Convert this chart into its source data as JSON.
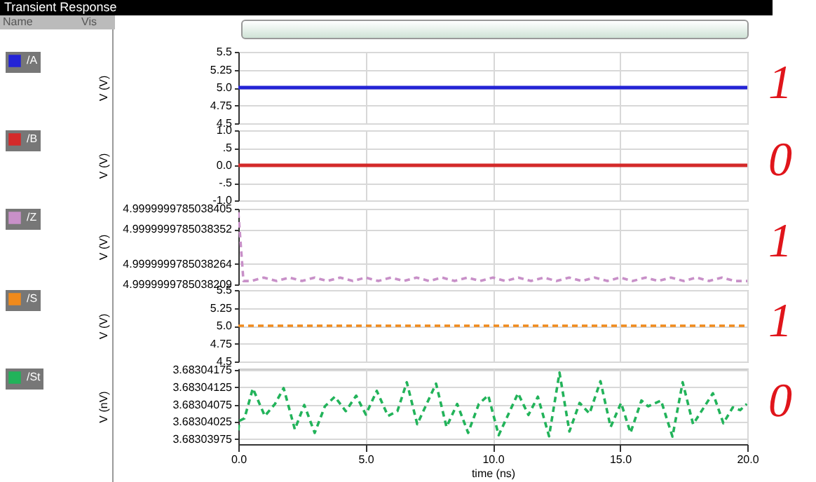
{
  "chart_data": [
    {
      "type": "line",
      "ylabel": "V (V)",
      "annotations": [
        "1",
        "Name",
        "Vis",
        "Transient Response"
      ],
      "series": [
        {
          "name": "/A",
          "color": "#2323d6",
          "x": [
            0,
            20
          ],
          "values": [
            5,
            5
          ]
        }
      ],
      "xlim": [
        0,
        20
      ],
      "xticks": [
        {
          "value": 0,
          "label": null
        },
        {
          "value": 5,
          "label": null
        },
        {
          "value": 10,
          "label": null
        },
        {
          "value": 15,
          "label": null
        },
        {
          "value": 20,
          "label": null
        }
      ],
      "ylim": [
        4.5,
        5.5
      ],
      "yticks": [
        5.5,
        5.25,
        {
          "value": 5,
          "label": "5.0"
        },
        4.75,
        4.5
      ],
      "grid": true,
      "legend": "left",
      "tick_labels": "y",
      "line_style": "solid"
    },
    {
      "type": "line",
      "ylabel": "V (V)",
      "annotations": [
        "0"
      ],
      "series": [
        {
          "name": "/B",
          "color": "#d42a2a",
          "x": [
            0,
            20
          ],
          "values": [
            0,
            0
          ]
        }
      ],
      "xlim": [
        0,
        20
      ],
      "xticks": [
        {
          "value": 0,
          "label": null
        },
        {
          "value": 5,
          "label": null
        },
        {
          "value": 10,
          "label": null
        },
        {
          "value": 15,
          "label": null
        },
        {
          "value": 20,
          "label": null
        }
      ],
      "ylim": [
        -1,
        1
      ],
      "yticks": [
        {
          "value": 1,
          "label": "1.0"
        },
        {
          "value": 0.5,
          "label": ".5"
        },
        {
          "value": 0,
          "label": "0.0"
        },
        {
          "value": -0.5,
          "label": "-.5"
        },
        {
          "value": -1,
          "label": "-1.0"
        }
      ],
      "grid": true,
      "legend": "left",
      "tick_labels": "y",
      "line_style": "solid"
    },
    {
      "type": "line",
      "ylabel": "V (V)",
      "annotations": [
        "1"
      ],
      "series": [
        {
          "name": "/Z",
          "color": "#c890c8",
          "x": [
            0,
            0.2,
            0.5,
            1,
            1.5,
            2,
            2.5,
            3,
            3.5,
            4,
            4.5,
            5,
            5.5,
            6,
            6.5,
            7,
            7.5,
            8,
            8.5,
            9,
            9.5,
            10,
            10.5,
            11,
            11.5,
            12,
            12.5,
            13,
            13.5,
            14,
            14.5,
            15,
            15.5,
            16,
            16.5,
            17,
            17.5,
            18,
            18.5,
            19,
            19.5,
            20
          ],
          "values": [
            4.99999997850384,
            4.999999978503822,
            4.999999978503822,
            4.999999978503823,
            4.999999978503822,
            4.999999978503823,
            4.999999978503822,
            4.999999978503823,
            4.999999978503822,
            4.999999978503823,
            4.999999978503822,
            4.999999978503823,
            4.999999978503822,
            4.999999978503823,
            4.999999978503822,
            4.999999978503823,
            4.999999978503822,
            4.999999978503823,
            4.999999978503822,
            4.999999978503823,
            4.999999978503822,
            4.999999978503823,
            4.999999978503822,
            4.999999978503823,
            4.999999978503822,
            4.999999978503823,
            4.999999978503822,
            4.999999978503823,
            4.999999978503822,
            4.999999978503823,
            4.999999978503822,
            4.999999978503823,
            4.999999978503822,
            4.999999978503823,
            4.999999978503822,
            4.999999978503823,
            4.999999978503822,
            4.999999978503823,
            4.999999978503822,
            4.999999978503823,
            4.999999978503822,
            4.999999978503822
          ]
        }
      ],
      "xlim": [
        0,
        20
      ],
      "xticks": [
        {
          "value": 0,
          "label": null
        },
        {
          "value": 5,
          "label": null
        },
        {
          "value": 10,
          "label": null
        },
        {
          "value": 15,
          "label": null
        },
        {
          "value": 20,
          "label": null
        }
      ],
      "ylim": [
        4.999999978503821,
        4.9999999785038405
      ],
      "yticks": [
        {
          "value": 4.9999999785038405,
          "label": "4.9999999785038405"
        },
        {
          "value": 4.999999978503835,
          "label": "4.9999999785038352"
        },
        {
          "value": 4.999999978503826,
          "label": "4.9999999785038264"
        },
        {
          "value": 4.999999978503821,
          "label": "4.9999999785038209"
        }
      ],
      "grid": true,
      "legend": "left",
      "tick_labels": "y",
      "line_style": "dashed"
    },
    {
      "type": "line",
      "ylabel": "V (V)",
      "annotations": [
        "1"
      ],
      "series": [
        {
          "name": "/S",
          "color": "#f08a1c",
          "x": [
            0,
            20
          ],
          "values": [
            5,
            5
          ]
        }
      ],
      "xlim": [
        0,
        20
      ],
      "xticks": [
        {
          "value": 0,
          "label": null
        },
        {
          "value": 5,
          "label": null
        },
        {
          "value": 10,
          "label": null
        },
        {
          "value": 15,
          "label": null
        },
        {
          "value": 20,
          "label": null
        }
      ],
      "ylim": [
        4.5,
        5.5
      ],
      "yticks": [
        5.5,
        5.25,
        {
          "value": 5,
          "label": "5.0"
        },
        4.75,
        4.5
      ],
      "grid": true,
      "legend": "left",
      "tick_labels": "y",
      "line_style": "dashed"
    },
    {
      "type": "line",
      "ylabel": "V (nV)",
      "xlabel": "time (ns)",
      "annotations": [
        "0"
      ],
      "series": [
        {
          "name": "/St",
          "color": "#22b35a",
          "x": [
            0,
            0.04,
            0.24,
            0.57,
            1.04,
            1.44,
            1.78,
            2.22,
            2.59,
            3.0,
            3.4,
            3.79,
            4.22,
            4.63,
            5.01,
            5.44,
            5.88,
            6.25,
            6.62,
            7.03,
            7.77,
            8.18,
            8.6,
            9.03,
            9.45,
            9.82,
            10.23,
            10.99,
            11.4,
            11.77,
            12.21,
            12.62,
            13.01,
            13.41,
            13.8,
            14.23,
            14.63,
            15.04,
            15.41,
            15.84,
            16.1,
            16.61,
            17.06,
            17.46,
            17.87,
            18.65,
            19.06,
            19.43,
            19.72,
            19.98
          ],
          "values": [
            3.68304,
            3.68304028,
            3.68304035,
            3.68304122,
            3.68304042,
            3.68304077,
            3.68304123,
            3.68304003,
            3.68304074,
            3.68303993,
            3.6830407,
            3.68304098,
            3.68304056,
            3.68304101,
            3.68304046,
            3.68304115,
            3.68304042,
            3.68304056,
            3.6830414,
            3.68304018,
            3.68304136,
            3.6830401,
            3.68304077,
            3.68303993,
            3.68304077,
            3.68304102,
            3.68303986,
            3.68304108,
            3.68304045,
            3.68304098,
            3.68303983,
            3.68304168,
            3.68303997,
            3.6830408,
            3.68304049,
            3.68304143,
            3.6830401,
            3.6830408,
            3.68303993,
            3.68304087,
            3.6830407,
            3.68304087,
            3.68303982,
            3.6830414,
            3.68304018,
            3.68304108,
            3.68304021,
            3.68304067,
            3.68304059,
            3.68304077
          ]
        }
      ],
      "xlim": [
        0,
        20
      ],
      "xticks": [
        {
          "value": 0,
          "label": "0.0"
        },
        {
          "value": 5,
          "label": "5.0"
        },
        {
          "value": 10,
          "label": "10.0"
        },
        {
          "value": 15,
          "label": "15.0"
        },
        {
          "value": 20,
          "label": "20.0"
        }
      ],
      "ylim": [
        3.6830396,
        3.6830418
      ],
      "yticks": [
        3.68304175,
        3.68304125,
        3.68304075,
        3.68304025,
        3.68303975
      ],
      "grid": true,
      "legend": "left",
      "line_style": "dashed"
    }
  ]
}
